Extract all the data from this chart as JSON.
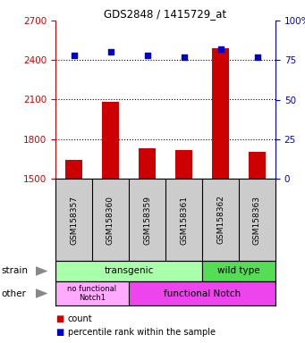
{
  "title": "GDS2848 / 1415729_at",
  "samples": [
    "GSM158357",
    "GSM158360",
    "GSM158359",
    "GSM158361",
    "GSM158362",
    "GSM158363"
  ],
  "counts": [
    1640,
    2080,
    1730,
    1715,
    2490,
    1700
  ],
  "percentiles": [
    78,
    80,
    78,
    77,
    82,
    77
  ],
  "ylim_left": [
    1500,
    2700
  ],
  "ylim_right": [
    0,
    100
  ],
  "yticks_left": [
    1500,
    1800,
    2100,
    2400,
    2700
  ],
  "yticks_right": [
    0,
    25,
    50,
    75,
    100
  ],
  "ytick_right_labels": [
    "0",
    "25",
    "50",
    "75",
    "100%"
  ],
  "bar_color": "#cc0000",
  "dot_color": "#0000cc",
  "bar_width": 0.45,
  "transgenic_color": "#aaffaa",
  "wildtype_color": "#55dd55",
  "no_notch_color": "#ffaaff",
  "func_notch_color": "#ee44ee",
  "legend_count_color": "#cc0000",
  "legend_dot_color": "#0000cc",
  "tick_color_left": "#cc0000",
  "tick_color_right": "#0000cc",
  "label_bg_color": "#cccccc"
}
